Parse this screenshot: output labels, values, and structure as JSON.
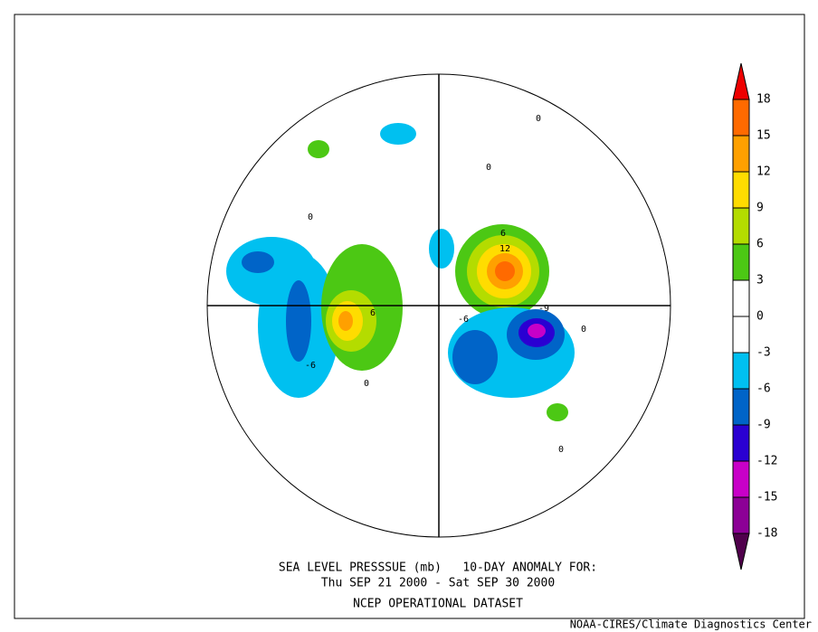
{
  "title": {
    "line1": "SEA LEVEL PRESSSUE (mb)   10-DAY ANOMALY FOR:",
    "line2": "Thu SEP 21 2000 - Sat SEP 30 2000",
    "line3": "NCEP OPERATIONAL DATASET"
  },
  "credit": "NOAA-CIRES/Climate Diagnostics Center",
  "colorbar": {
    "levels": [
      18,
      15,
      12,
      9,
      6,
      3,
      0,
      -3,
      -6,
      -9,
      -12,
      -15,
      -18
    ],
    "colors": [
      "#ee0000",
      "#ff6a00",
      "#ffa000",
      "#ffdc00",
      "#b4dc00",
      "#4cc814",
      "#ffffff",
      "#ffffff",
      "#00c0f0",
      "#0064c8",
      "#2a00d2",
      "#c800c8",
      "#8c0096",
      "#50004c"
    ]
  },
  "contour_labels": [
    "6",
    "12",
    "-6",
    "-6",
    "-9",
    "6",
    "0",
    "0",
    "0",
    "0",
    "0",
    "0"
  ]
}
